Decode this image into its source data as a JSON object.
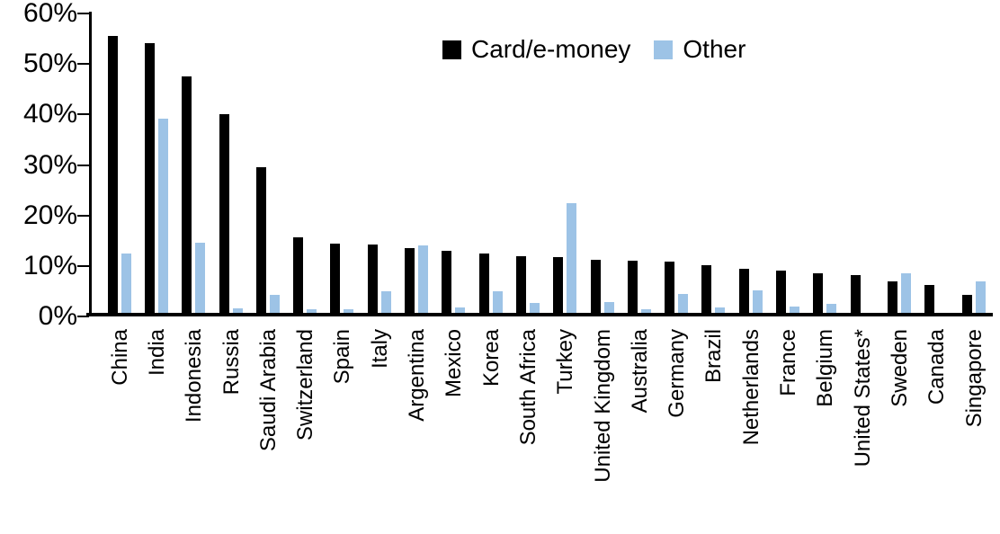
{
  "chart_data": {
    "type": "bar",
    "title": "",
    "categories": [
      "China",
      "India",
      "Indonesia",
      "Russia",
      "Saudi Arabia",
      "Switzerland",
      "Spain",
      "Italy",
      "Argentina",
      "Mexico",
      "Korea",
      "South Africa",
      "Turkey",
      "United Kingdom",
      "Australia",
      "Germany",
      "Brazil",
      "Netherlands",
      "France",
      "Belgium",
      "United States*",
      "Sweden",
      "Canada",
      "Singapore"
    ],
    "series": [
      {
        "name": "Card/e-money",
        "color": "#000000",
        "values": [
          55.5,
          54.2,
          47.5,
          40.0,
          29.6,
          15.7,
          14.4,
          14.2,
          13.5,
          13.0,
          12.5,
          11.9,
          11.8,
          11.3,
          11.0,
          10.8,
          10.1,
          9.5,
          9.0,
          8.5,
          8.2,
          6.9,
          6.3,
          4.3
        ]
      },
      {
        "name": "Other",
        "color": "#9dc3e6",
        "values": [
          12.5,
          39.2,
          14.6,
          1.6,
          4.3,
          1.4,
          1.5,
          4.9,
          14.1,
          1.8,
          4.9,
          2.7,
          22.5,
          2.8,
          1.5,
          4.4,
          1.7,
          5.2,
          1.9,
          2.5,
          0.4,
          8.5,
          0,
          7.0
        ]
      }
    ],
    "xlabel": "",
    "ylabel": "",
    "ylim": [
      0,
      60
    ],
    "y_tick_labels": [
      "0%",
      "10%",
      "20%",
      "30%",
      "40%",
      "50%",
      "60%"
    ],
    "grid": false,
    "legend_position": "top-center",
    "axis_color": "#000000",
    "background_color": "#ffffff"
  }
}
